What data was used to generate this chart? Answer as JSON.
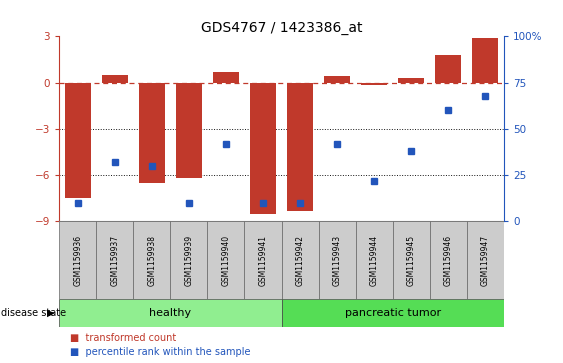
{
  "title": "GDS4767 / 1423386_at",
  "samples": [
    "GSM1159936",
    "GSM1159937",
    "GSM1159938",
    "GSM1159939",
    "GSM1159940",
    "GSM1159941",
    "GSM1159942",
    "GSM1159943",
    "GSM1159944",
    "GSM1159945",
    "GSM1159946",
    "GSM1159947"
  ],
  "bar_values": [
    -7.5,
    0.5,
    -6.5,
    -6.2,
    0.7,
    -8.5,
    -8.3,
    0.4,
    -0.15,
    0.3,
    1.8,
    2.9
  ],
  "percentile_values": [
    10,
    32,
    30,
    10,
    42,
    10,
    10,
    42,
    22,
    38,
    60,
    68
  ],
  "bar_color": "#c0392b",
  "dot_color": "#2255bb",
  "groups": [
    {
      "label": "healthy",
      "indices": [
        0,
        5
      ],
      "color": "#90ee90"
    },
    {
      "label": "pancreatic tumor",
      "indices": [
        6,
        11
      ],
      "color": "#55dd55"
    }
  ],
  "ylim_left": [
    -9,
    3
  ],
  "ylim_right": [
    0,
    100
  ],
  "yticks_left": [
    -9,
    -6,
    -3,
    0,
    3
  ],
  "yticks_right": [
    0,
    25,
    50,
    75,
    100
  ],
  "zero_line_color": "#c0392b",
  "grid_color": "#111111",
  "legend_items": [
    "transformed count",
    "percentile rank within the sample"
  ],
  "disease_state_label": "disease state",
  "label_bg": "#cccccc"
}
